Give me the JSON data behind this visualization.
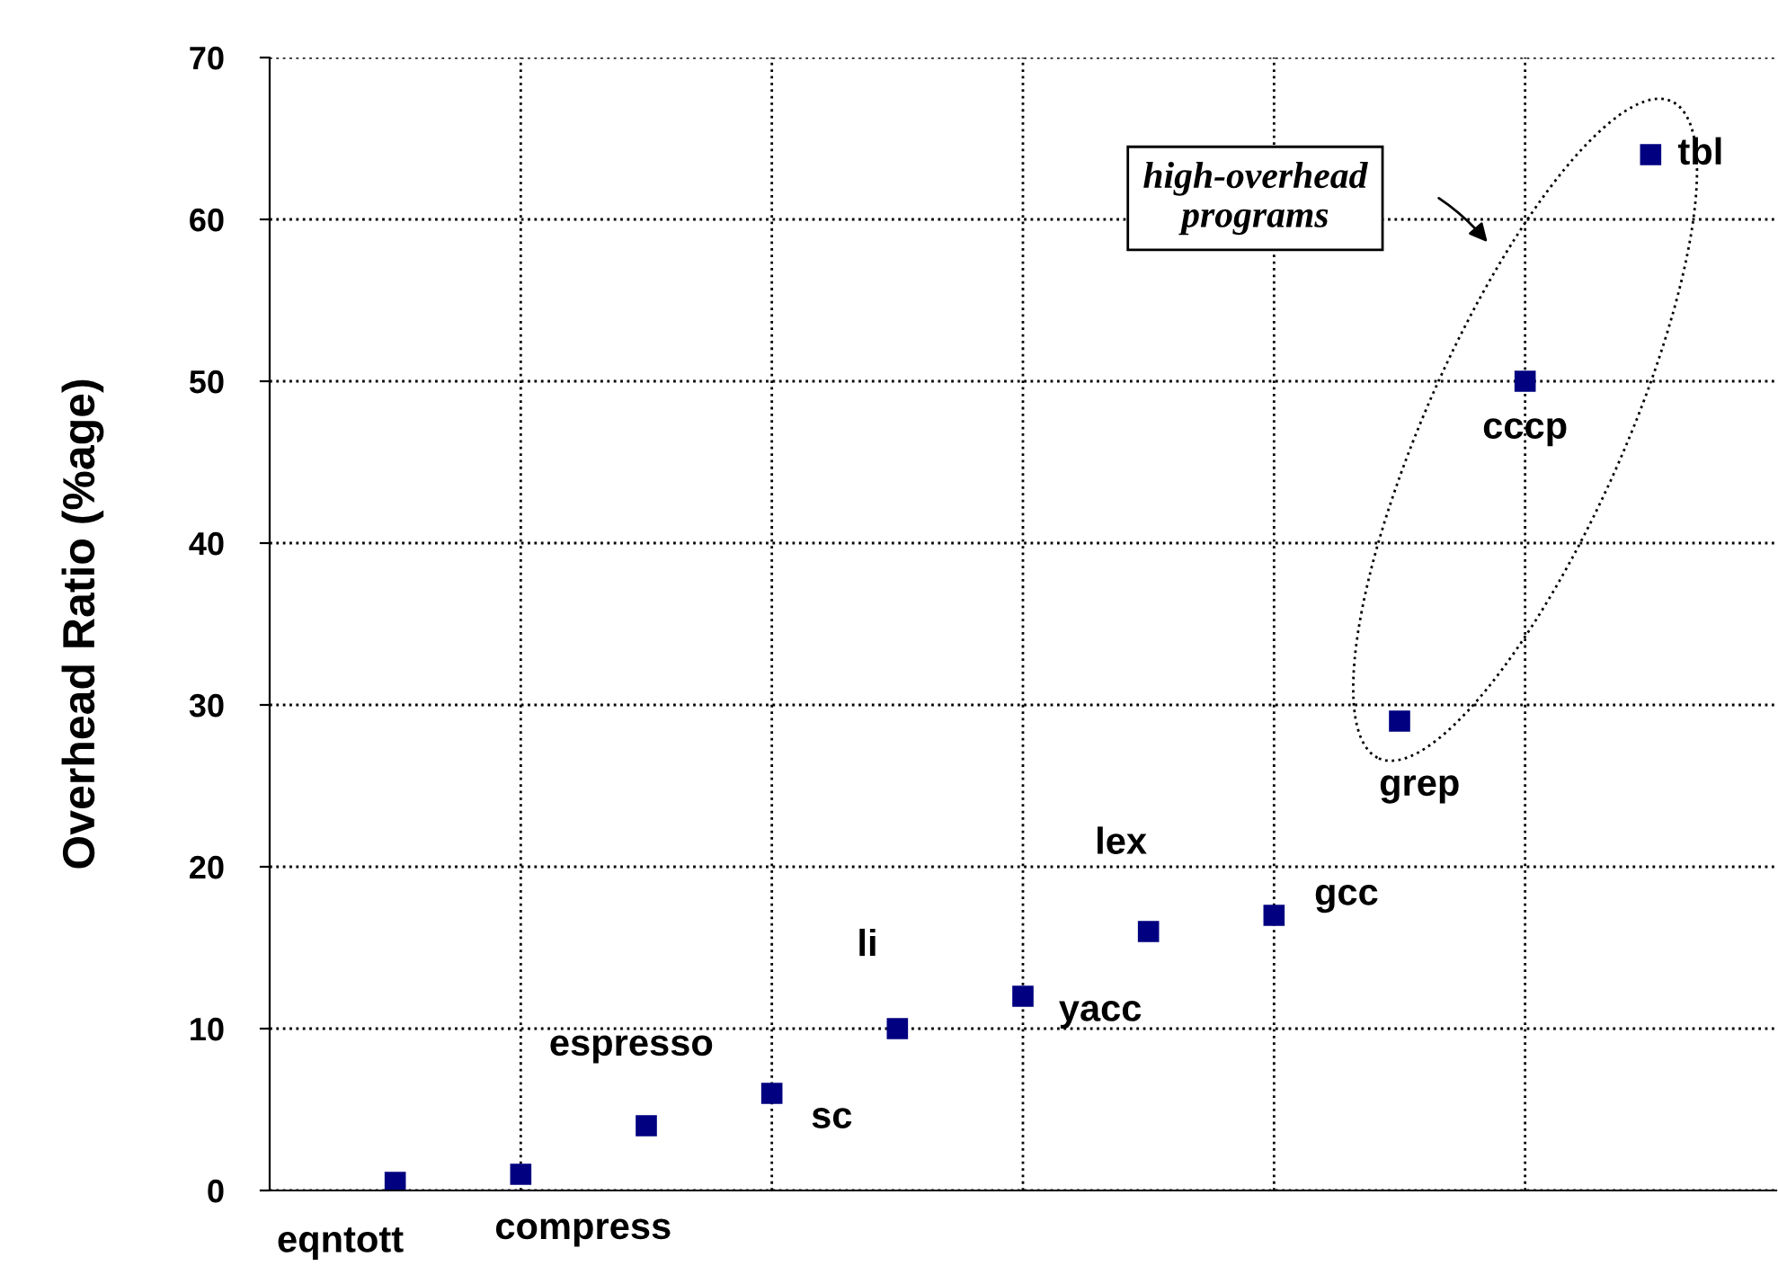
{
  "chart_data": {
    "type": "scatter",
    "ylabel": "Overhead Ratio (%age)",
    "categories": [
      null,
      null,
      null,
      null,
      null,
      null,
      null,
      null,
      null,
      null,
      null
    ],
    "values": [
      0.5,
      1,
      4,
      6,
      10,
      12,
      16,
      17,
      29,
      50,
      64
    ],
    "color": "#000080",
    "marker": "square",
    "ylim": [
      0,
      70
    ],
    "yticks": [
      0,
      10,
      20,
      30,
      40,
      50,
      60,
      70
    ],
    "grid": true,
    "annotations": [
      "eqntott",
      "compress",
      "espresso",
      "sc",
      "li",
      "yacc",
      "lex",
      "gcc",
      "grep",
      "cccp",
      "tbl",
      "high-overhead\nprograms"
    ]
  }
}
